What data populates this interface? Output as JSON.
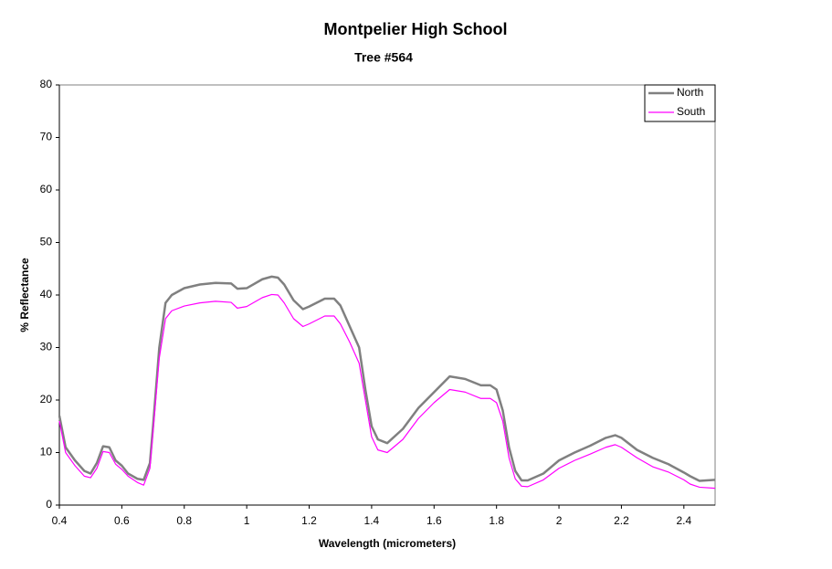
{
  "chart_data": {
    "type": "line",
    "title": "Montpelier High School",
    "subtitle": "Tree #564",
    "x_label": "Wavelength (micrometers)",
    "y_label": "% Reflectance",
    "x": [
      0.4,
      0.42,
      0.45,
      0.48,
      0.5,
      0.52,
      0.54,
      0.56,
      0.58,
      0.6,
      0.62,
      0.65,
      0.67,
      0.69,
      0.7,
      0.72,
      0.74,
      0.76,
      0.8,
      0.85,
      0.9,
      0.95,
      0.97,
      1.0,
      1.05,
      1.08,
      1.1,
      1.12,
      1.15,
      1.18,
      1.2,
      1.25,
      1.28,
      1.3,
      1.33,
      1.36,
      1.38,
      1.4,
      1.42,
      1.45,
      1.5,
      1.55,
      1.6,
      1.65,
      1.7,
      1.75,
      1.78,
      1.8,
      1.82,
      1.84,
      1.86,
      1.88,
      1.9,
      1.95,
      2.0,
      2.05,
      2.1,
      2.15,
      2.18,
      2.2,
      2.25,
      2.3,
      2.35,
      2.4,
      2.42,
      2.45,
      2.5
    ],
    "series": [
      {
        "name": "North",
        "color": "#808080",
        "values": [
          17,
          11,
          8.5,
          6.5,
          6,
          8,
          11.2,
          11,
          8.5,
          7.5,
          6,
          5,
          4.8,
          8,
          15,
          30,
          38.5,
          40,
          41.3,
          42,
          42.3,
          42.2,
          41.2,
          41.3,
          43,
          43.5,
          43.3,
          42,
          39,
          37.3,
          37.8,
          39.3,
          39.3,
          38,
          34,
          30,
          22,
          15,
          12.5,
          11.8,
          14.5,
          18.5,
          21.5,
          24.5,
          24,
          22.8,
          22.8,
          22,
          18,
          11,
          6.5,
          4.7,
          4.7,
          6,
          8.5,
          10,
          11.3,
          12.8,
          13.3,
          12.8,
          10.5,
          9,
          7.8,
          6.2,
          5.5,
          4.6,
          4.8
        ]
      },
      {
        "name": "South",
        "color": "#ff00ff",
        "values": [
          16,
          10,
          7.5,
          5.5,
          5.2,
          7,
          10.2,
          10,
          7.8,
          6.8,
          5.5,
          4.3,
          3.8,
          7,
          14,
          28,
          35.5,
          37,
          37.9,
          38.5,
          38.8,
          38.6,
          37.5,
          37.8,
          39.5,
          40.1,
          40,
          38.5,
          35.5,
          34,
          34.5,
          36,
          36,
          34.5,
          31,
          27,
          20,
          13,
          10.5,
          10,
          12.5,
          16.5,
          19.5,
          22,
          21.5,
          20.3,
          20.3,
          19.5,
          16,
          9,
          5,
          3.6,
          3.5,
          4.8,
          7,
          8.5,
          9.7,
          11,
          11.5,
          11,
          9,
          7.3,
          6.3,
          4.8,
          4,
          3.4,
          3.2
        ]
      }
    ],
    "xlim": [
      0.4,
      2.5
    ],
    "xticks": [
      0.4,
      0.6,
      0.8,
      1,
      1.2,
      1.4,
      1.6,
      1.8,
      2,
      2.2,
      2.4
    ],
    "ylim": [
      0,
      80
    ],
    "yticks": [
      0,
      10,
      20,
      30,
      40,
      50,
      60,
      70,
      80
    ],
    "legend": "top-right"
  }
}
